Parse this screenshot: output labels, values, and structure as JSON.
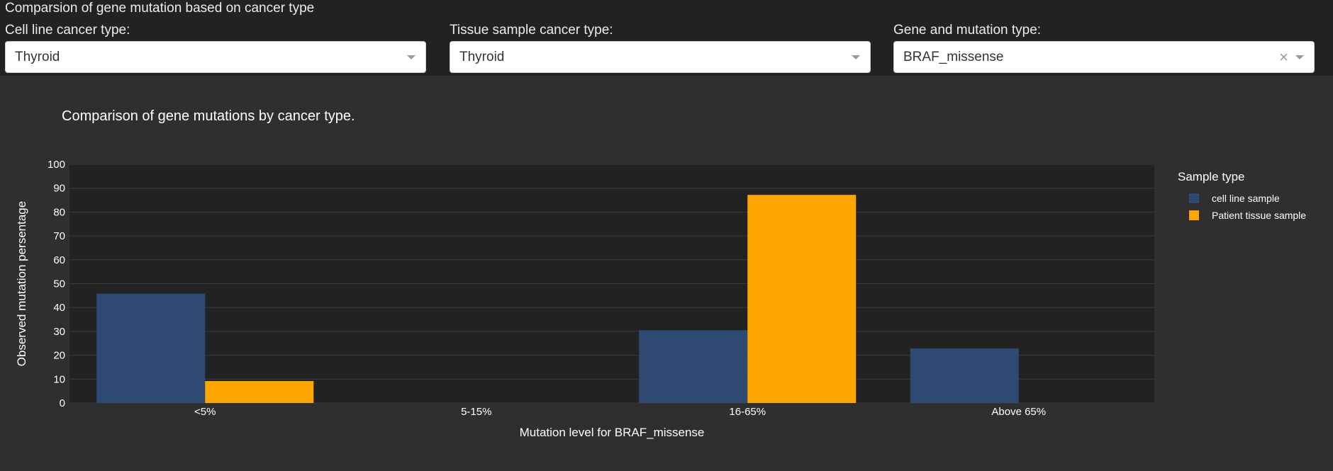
{
  "page": {
    "title": "Comparsion of gene mutation based on cancer type"
  },
  "filters": {
    "cell_line": {
      "label": "Cell line cancer type:",
      "value": "Thyroid"
    },
    "tissue": {
      "label": "Tissue sample cancer type:",
      "value": "Thyroid"
    },
    "gene": {
      "label": "Gene and mutation type:",
      "value": "BRAF_missense",
      "clear_symbol": "×"
    }
  },
  "colors": {
    "page_bg": "#222222",
    "panel_bg": "#2f2f2f",
    "plot_bg": "#222222",
    "grid": "#3a3a3a",
    "cell_line": "#2e4a73",
    "tissue": "#ffa500"
  },
  "chart_data": {
    "type": "bar",
    "title": "Comparison of gene mutations by cancer type.",
    "xlabel": "Mutation level for BRAF_missense",
    "ylabel": "Observed mutation persentage",
    "categories": [
      "<5%",
      "5-15%",
      "16-65%",
      "Above 65%"
    ],
    "ylim": [
      0,
      100
    ],
    "yticks": [
      "0",
      "10",
      "20",
      "30",
      "40",
      "50",
      "60",
      "70",
      "80",
      "90",
      "100"
    ],
    "grid": true,
    "legend": {
      "title": "Sample type",
      "placement": "right"
    },
    "series": [
      {
        "name": "cell line sample",
        "values": [
          45.8,
          0,
          30.5,
          22.9
        ],
        "color": "#2e4a73"
      },
      {
        "name": "Patient tissue sample",
        "values": [
          9.2,
          0,
          87.2,
          0
        ],
        "color": "#ffa500"
      }
    ]
  }
}
